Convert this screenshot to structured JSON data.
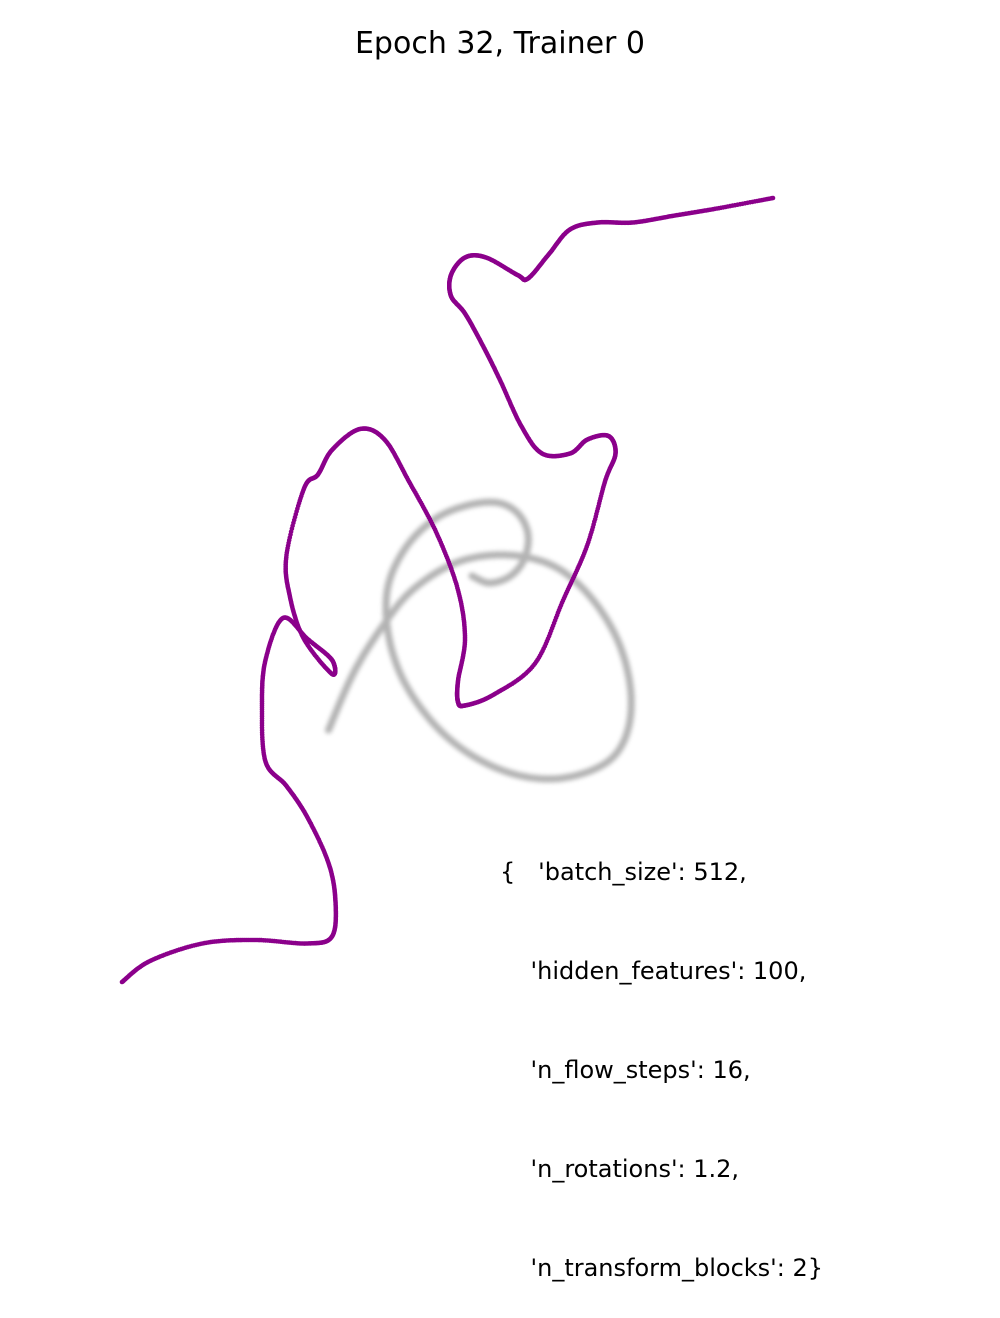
{
  "chart_data": {
    "type": "scatter",
    "title": "Epoch 32, Trainer 0",
    "xlabel": "",
    "ylabel": "",
    "axes_visible": false,
    "grid": false,
    "colors": {
      "target": "#a6a6a6",
      "samples": "#8b008b"
    },
    "series": [
      {
        "role": "target distribution (grey spiral)",
        "x": [
          -0.49,
          -0.42,
          -0.34,
          -0.25,
          -0.12,
          0.02,
          0.15,
          0.25,
          0.33,
          0.37,
          0.37,
          0.33,
          0.25,
          0.14,
          0.02,
          -0.1,
          -0.2,
          -0.28,
          -0.32,
          -0.32,
          -0.27,
          -0.19,
          -0.1,
          -0.01,
          0.05,
          0.08,
          0.07,
          0.03,
          -0.03,
          -0.08
        ],
        "y": [
          -0.6,
          -0.44,
          -0.31,
          -0.2,
          -0.12,
          -0.1,
          -0.13,
          -0.21,
          -0.33,
          -0.46,
          -0.58,
          -0.67,
          -0.72,
          -0.74,
          -0.72,
          -0.66,
          -0.57,
          -0.45,
          -0.32,
          -0.19,
          -0.08,
          0.0,
          0.04,
          0.05,
          0.02,
          -0.04,
          -0.11,
          -0.16,
          -0.18,
          -0.16
        ]
      },
      {
        "role": "model samples (purple)",
        "x": [
          -1.08,
          -1.0,
          -0.85,
          -0.7,
          -0.55,
          -0.48,
          -0.47,
          -0.49,
          -0.55,
          -0.61,
          -0.67,
          -0.68,
          -0.67,
          -0.62,
          -0.55,
          -0.48,
          -0.48,
          -0.56,
          -0.6,
          -0.61,
          -0.56,
          -0.52,
          -0.48,
          -0.4,
          -0.33,
          -0.26,
          -0.18,
          -0.12,
          -0.1,
          -0.12,
          -0.12,
          -0.1,
          -0.02,
          0.1,
          0.18,
          0.25,
          0.3,
          0.33,
          0.31,
          0.25,
          0.2,
          0.12,
          0.06,
          0.0,
          -0.05,
          -0.1,
          -0.14,
          -0.14,
          -0.1,
          -0.04,
          0.05,
          0.08,
          0.14,
          0.2,
          0.28,
          0.38,
          0.5,
          0.62,
          0.78
        ],
        "y": [
          -1.32,
          -1.26,
          -1.21,
          -1.2,
          -1.21,
          -1.19,
          -1.09,
          -0.98,
          -0.85,
          -0.76,
          -0.69,
          -0.53,
          -0.4,
          -0.28,
          -0.34,
          -0.4,
          -0.44,
          -0.34,
          -0.22,
          -0.1,
          0.09,
          0.13,
          0.2,
          0.26,
          0.23,
          0.11,
          -0.04,
          -0.2,
          -0.34,
          -0.46,
          -0.52,
          -0.53,
          -0.5,
          -0.41,
          -0.23,
          -0.07,
          0.11,
          0.19,
          0.24,
          0.23,
          0.19,
          0.19,
          0.27,
          0.4,
          0.5,
          0.59,
          0.64,
          0.7,
          0.75,
          0.75,
          0.7,
          0.69,
          0.76,
          0.83,
          0.85,
          0.85,
          0.87,
          0.89,
          0.92
        ]
      }
    ],
    "xlim": [
      -1.5,
      1.5
    ],
    "ylim": [
      -1.5,
      1.5
    ]
  },
  "annotation": {
    "lines": [
      "{   'batch_size': 512,",
      "    'hidden_features': 100,",
      "    'n_flow_steps': 16,",
      "    'n_rotations': 1.2,",
      "    'n_transform_blocks': 2}"
    ]
  }
}
